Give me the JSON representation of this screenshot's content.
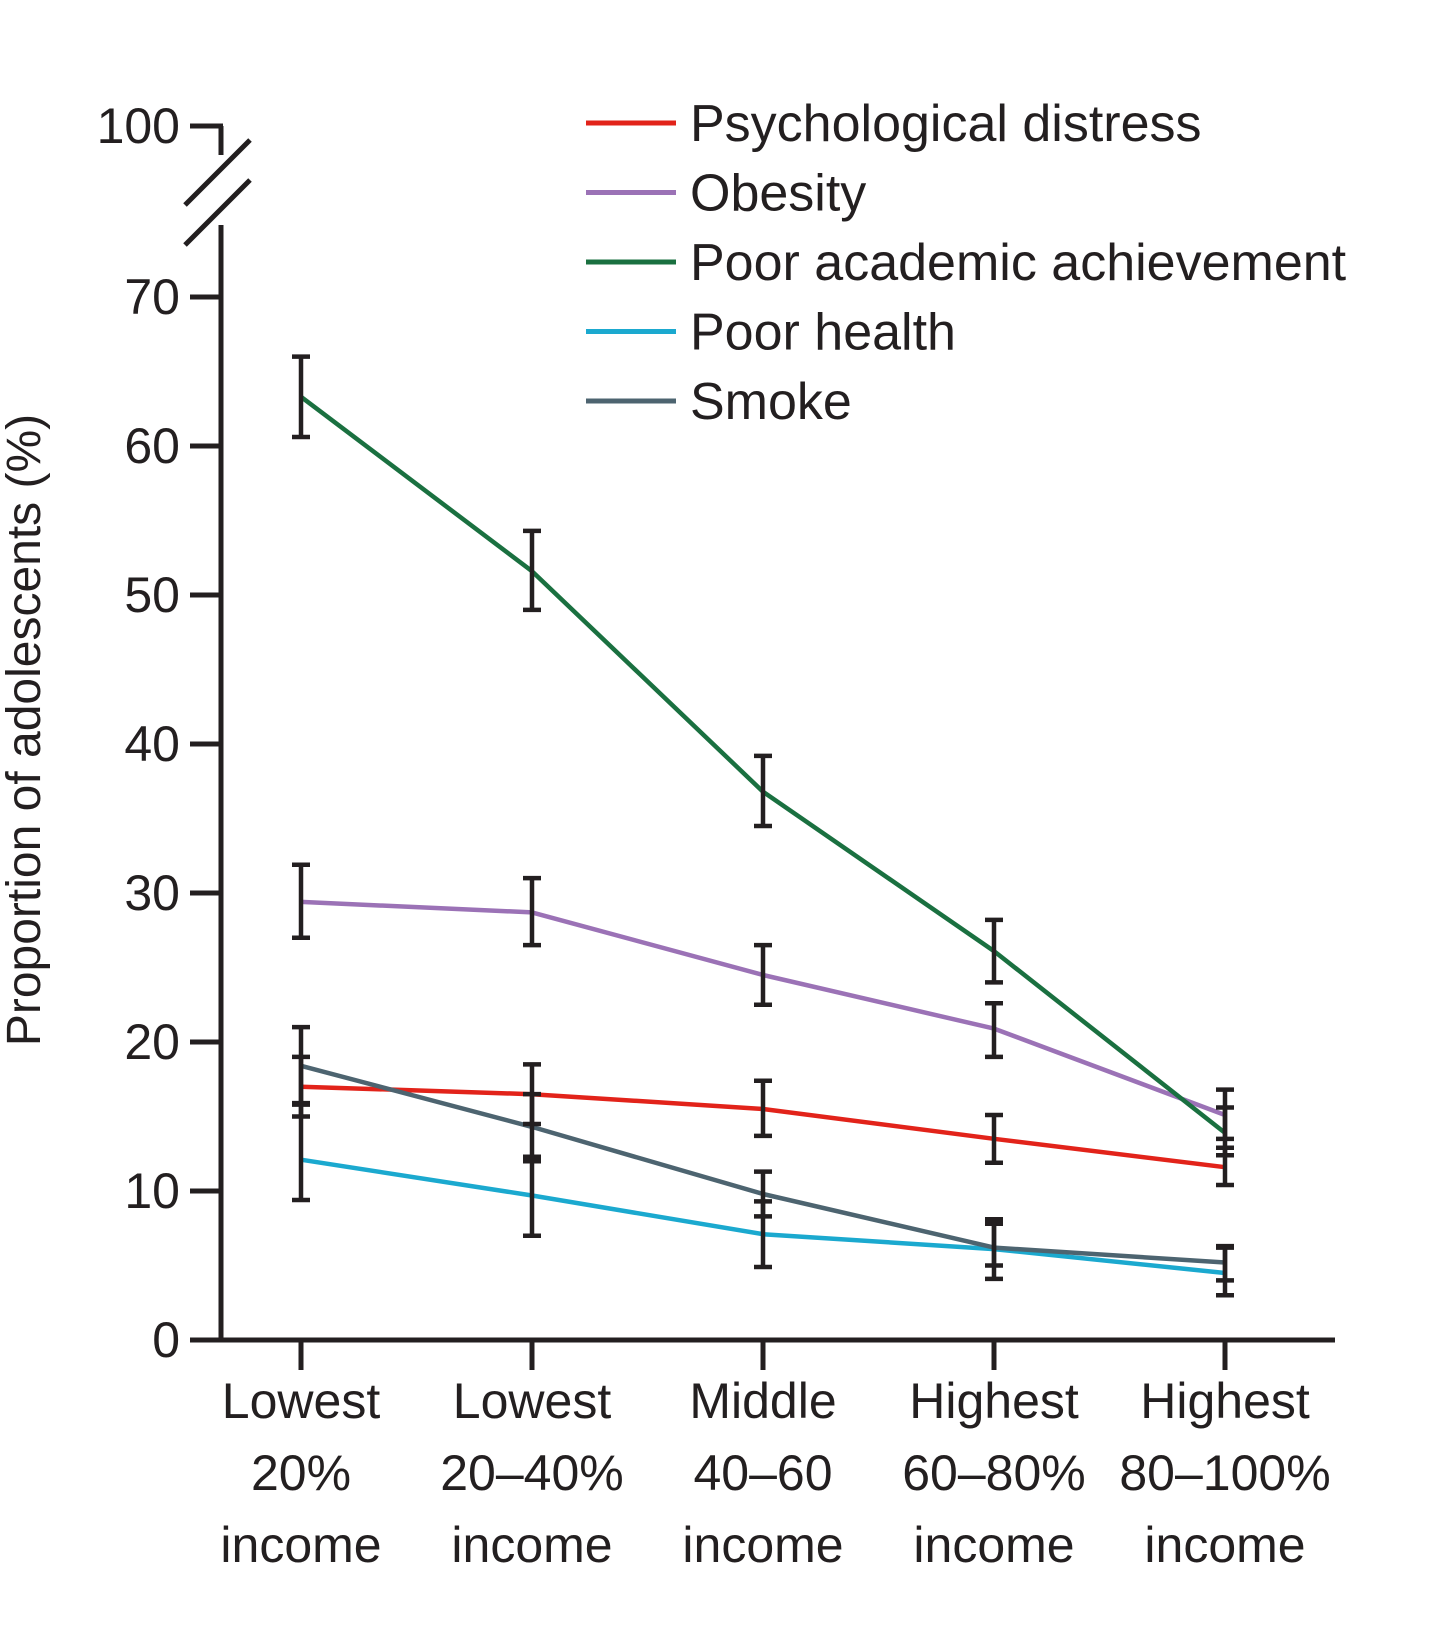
{
  "chart_data": {
    "type": "line",
    "categories": [
      [
        "Lowest",
        "20%",
        "income"
      ],
      [
        "Lowest",
        "20–40%",
        "income"
      ],
      [
        "Middle",
        "40–60",
        "income"
      ],
      [
        "Highest",
        "60–80%",
        "income"
      ],
      [
        "Highest",
        "80–100%",
        "income"
      ]
    ],
    "ylabel": "Proportion of adolescents (%)",
    "xlabel": "",
    "title": "",
    "ylim": [
      0,
      70
    ],
    "yticks": [
      0,
      10,
      20,
      30,
      40,
      50,
      60,
      70
    ],
    "ybreak_top_label": "100",
    "legend_position": "top-right",
    "series": [
      {
        "name": "Psychological distress",
        "color": "#e2231a",
        "values": [
          17.0,
          16.5,
          15.5,
          13.5,
          11.6
        ],
        "lower": [
          15.0,
          14.5,
          13.7,
          11.9,
          10.4
        ],
        "upper": [
          19.0,
          18.5,
          17.4,
          15.1,
          12.9
        ]
      },
      {
        "name": "Obesity",
        "color": "#9b72b6",
        "values": [
          29.4,
          28.7,
          24.5,
          20.9,
          15.1
        ],
        "lower": [
          27.0,
          26.5,
          22.5,
          19.0,
          13.5
        ],
        "upper": [
          31.9,
          31.0,
          26.5,
          22.6,
          16.8
        ]
      },
      {
        "name": "Poor academic achievement",
        "color": "#1a7040",
        "values": [
          63.3,
          51.6,
          36.8,
          26.1,
          13.9
        ],
        "lower": [
          60.6,
          49.0,
          34.5,
          24.0,
          12.4
        ],
        "upper": [
          66.0,
          54.3,
          39.2,
          28.2,
          15.6
        ]
      },
      {
        "name": "Poor health",
        "color": "#1ba9cf",
        "values": [
          12.1,
          9.7,
          7.1,
          6.1,
          4.5
        ],
        "lower": [
          9.4,
          7.0,
          4.9,
          4.1,
          3.0
        ],
        "upper": [
          15.9,
          12.3,
          9.3,
          7.8,
          6.2
        ]
      },
      {
        "name": "Smoke",
        "color": "#4d6470",
        "values": [
          18.4,
          14.3,
          9.8,
          6.2,
          5.2
        ],
        "lower": [
          15.8,
          12.0,
          8.3,
          5.0,
          4.0
        ],
        "upper": [
          21.0,
          16.5,
          11.3,
          8.1,
          6.3
        ]
      }
    ]
  }
}
